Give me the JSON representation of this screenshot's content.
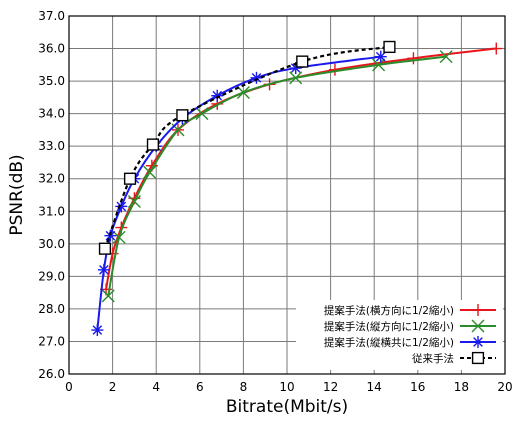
{
  "chart_data": {
    "type": "line",
    "xlabel": "Bitrate(Mbit/s)",
    "ylabel": "PSNR(dB)",
    "xlim": [
      0,
      20
    ],
    "ylim": [
      26.0,
      37.0
    ],
    "xticks": [
      0,
      2,
      4,
      6,
      8,
      10,
      12,
      14,
      16,
      18,
      20
    ],
    "yticks": [
      26.0,
      27.0,
      28.0,
      29.0,
      30.0,
      31.0,
      32.0,
      33.0,
      34.0,
      35.0,
      36.0,
      37.0
    ],
    "xtick_labels": [
      "0",
      "2",
      "4",
      "6",
      "8",
      "10",
      "12",
      "14",
      "16",
      "18",
      "20"
    ],
    "ytick_labels": [
      "26.0",
      "27.0",
      "28.0",
      "29.0",
      "30.0",
      "31.0",
      "32.0",
      "33.0",
      "34.0",
      "35.0",
      "36.0",
      "37.0"
    ],
    "grid": true,
    "legend_position": "bottom-right",
    "series": [
      {
        "name": "提案手法(横方向に1/2縮小)",
        "color": "#e8161b",
        "marker": "plus",
        "x": [
          1.7,
          2.0,
          2.4,
          3.0,
          3.8,
          5.0,
          6.8,
          9.2,
          12.2,
          15.8,
          19.6
        ],
        "y": [
          28.6,
          29.7,
          30.5,
          31.4,
          32.4,
          33.5,
          34.3,
          34.9,
          35.35,
          35.7,
          36.0
        ]
      },
      {
        "name": "提案手法(縦方向に1/2縮小)",
        "color": "#2a8c2a",
        "marker": "x",
        "x": [
          1.8,
          2.3,
          3.0,
          3.7,
          5.0,
          6.1,
          8.0,
          10.4,
          14.2,
          17.3
        ],
        "y": [
          28.4,
          30.2,
          31.3,
          32.2,
          33.5,
          34.0,
          34.65,
          35.1,
          35.5,
          35.75
        ]
      },
      {
        "name": "提案手法(縦横共に1/2縮小)",
        "color": "#1a1aef",
        "marker": "asterisk",
        "x": [
          1.3,
          1.6,
          1.9,
          2.4,
          3.0,
          4.0,
          5.2,
          6.8,
          8.6,
          10.4,
          14.3
        ],
        "y": [
          27.35,
          29.2,
          30.25,
          31.15,
          32.0,
          33.0,
          33.85,
          34.55,
          35.1,
          35.4,
          35.75
        ]
      },
      {
        "name": "従来手法",
        "color": "#000000",
        "marker": "square",
        "dashed": true,
        "x": [
          1.65,
          2.8,
          3.85,
          5.2,
          10.7,
          14.7
        ],
        "y": [
          29.85,
          32.0,
          33.05,
          33.95,
          35.6,
          36.05
        ]
      }
    ]
  }
}
